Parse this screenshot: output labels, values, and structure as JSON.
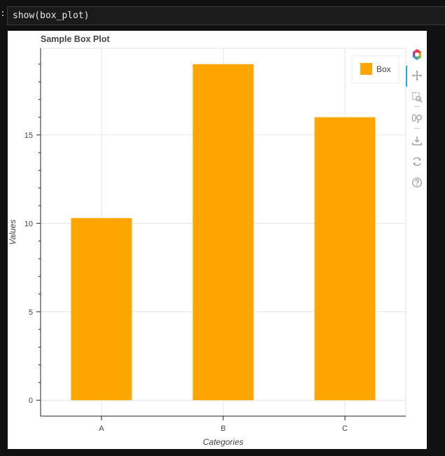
{
  "notebook": {
    "prompt": ":",
    "code": "show(box_plot)"
  },
  "chart_data": {
    "type": "bar",
    "title": "Sample Box Plot",
    "xlabel": "Categories",
    "ylabel": "Values",
    "categories": [
      "A",
      "B",
      "C"
    ],
    "values": [
      10.3,
      19.0,
      16.0
    ],
    "ylim": [
      -0.9,
      19.9
    ],
    "yticks": [
      0,
      5,
      10,
      15
    ],
    "ytick_labels": [
      "0",
      "5",
      "10",
      "15"
    ],
    "bar_color": "#ffa500",
    "grid": true,
    "legend": {
      "position": "top-right",
      "entries": [
        {
          "label": "Box",
          "color": "#ffa500"
        }
      ]
    }
  },
  "toolbar": {
    "icons": [
      "bokeh-logo-icon",
      "pan-icon",
      "box-zoom-icon",
      "wheel-zoom-icon",
      "save-icon",
      "reset-icon",
      "help-icon"
    ]
  }
}
